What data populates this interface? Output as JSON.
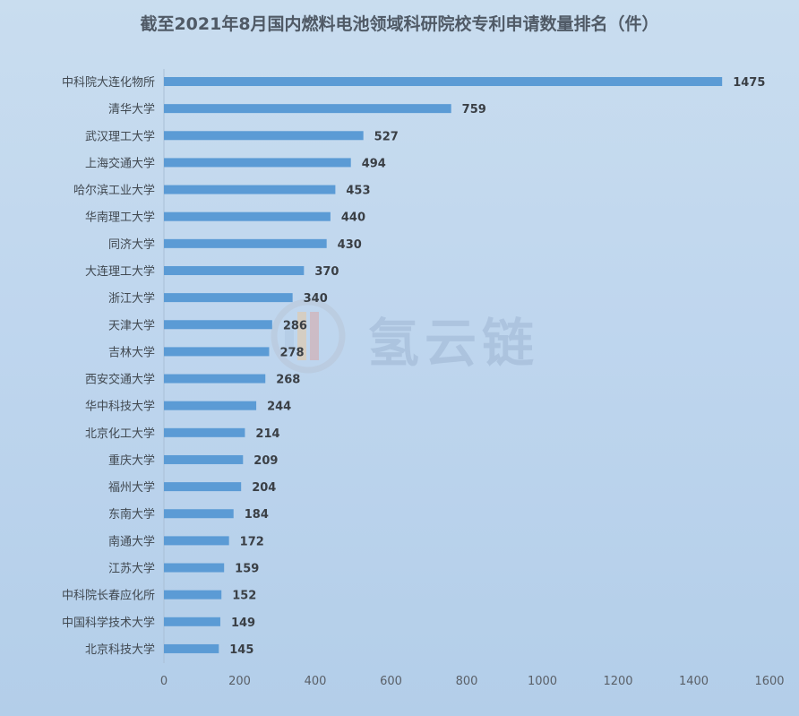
{
  "watermark": {
    "text": "氢云链",
    "logo": "hydrogen-cloud-chain-logo"
  },
  "colors": {
    "bar": "#5b9bd5",
    "background": "#c3d9ee"
  },
  "chart_data": {
    "type": "bar",
    "orientation": "horizontal",
    "title": "截至2021年8月国内燃料电池领域科研院校专利申请数量排名（件）",
    "xlabel": "",
    "ylabel": "",
    "xlim": [
      0,
      1600
    ],
    "x_ticks": [
      0,
      200,
      400,
      600,
      800,
      1000,
      1200,
      1400,
      1600
    ],
    "grid": false,
    "legend": "none",
    "categories": [
      "中科院大连化物所",
      "清华大学",
      "武汉理工大学",
      "上海交通大学",
      "哈尔滨工业大学",
      "华南理工大学",
      "同济大学",
      "大连理工大学",
      "浙江大学",
      "天津大学",
      "吉林大学",
      "西安交通大学",
      "华中科技大学",
      "北京化工大学",
      "重庆大学",
      "福州大学",
      "东南大学",
      "南通大学",
      "江苏大学",
      "中科院长春应化所",
      "中国科学技术大学",
      "北京科技大学"
    ],
    "values": [
      1475,
      759,
      527,
      494,
      453,
      440,
      430,
      370,
      340,
      286,
      278,
      268,
      244,
      214,
      209,
      204,
      184,
      172,
      159,
      152,
      149,
      145
    ]
  }
}
